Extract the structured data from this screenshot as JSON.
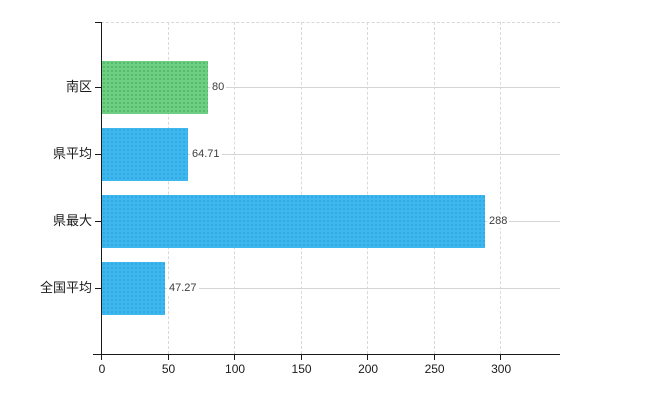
{
  "chart_data": {
    "type": "bar",
    "orientation": "horizontal",
    "title": "",
    "xlabel": "",
    "ylabel": "",
    "categories": [
      "南区",
      "県平均",
      "県最大",
      "全国平均"
    ],
    "values": [
      80,
      64.71,
      288,
      47.27
    ],
    "value_labels": [
      "80",
      "64.71",
      "288",
      "47.27"
    ],
    "bar_colors": [
      "green",
      "blue",
      "blue",
      "blue"
    ],
    "xlim": [
      0,
      345
    ],
    "xticks": [
      0,
      50,
      100,
      150,
      200,
      250,
      300
    ],
    "xtick_labels": [
      "0",
      "50",
      "100",
      "150",
      "200",
      "250",
      "300"
    ],
    "grid": true,
    "legend": false
  },
  "colors": {
    "green_bar": "#6ecf82",
    "blue_bar": "#3eb7ee",
    "gridline": "#d9d9d9",
    "axis": "#1a1a1a",
    "value_label": "#3c3c3c",
    "tick_label": "#1a1a1a"
  }
}
